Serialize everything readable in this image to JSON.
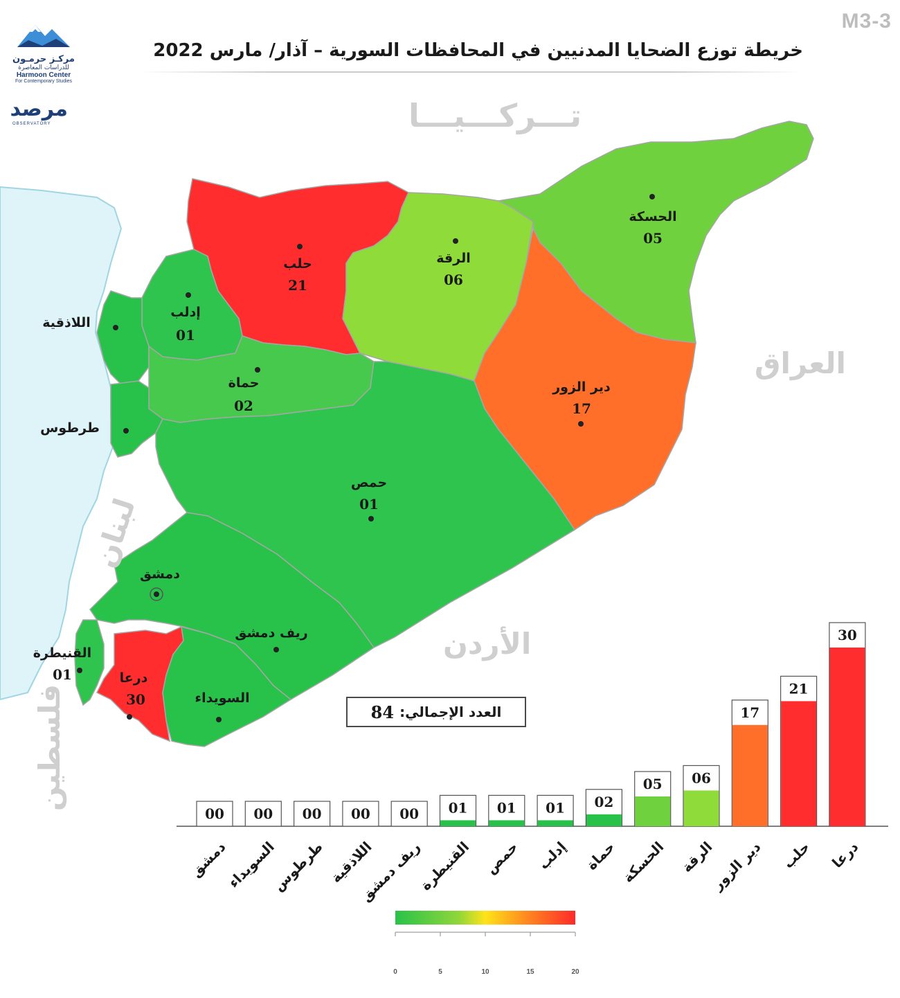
{
  "header": {
    "code": "M3-3",
    "title": "خريطة توزع الضحايا المدنيين في المحافظات السورية – آذار/ مارس 2022"
  },
  "logos": {
    "harmoon_ar": "مركـز حرمـون",
    "harmoon_ar_sub": "للدراسات المعاصرة",
    "harmoon_en": "Harmoon Center",
    "harmoon_en_sub": "For Contemporary Studies",
    "observatory_ar": "مرصد",
    "observatory_en": "OBSERVATORY"
  },
  "neighbors": {
    "turkey": "تـــركـــيـــا",
    "iraq": "العراق",
    "jordan": "الأردن",
    "lebanon": "لبنان",
    "palestine": "فلسطين"
  },
  "governorates": [
    {
      "id": "aleppo",
      "name": "حلب",
      "value": "21",
      "color": "#ff2d2d"
    },
    {
      "id": "raqqa",
      "name": "الرقة",
      "value": "06",
      "color": "#8fdb3a"
    },
    {
      "id": "hasakah",
      "name": "الحسكة",
      "value": "05",
      "color": "#6fd13e"
    },
    {
      "id": "deir",
      "name": "دير الزور",
      "value": "17",
      "color": "#ff6f2a"
    },
    {
      "id": "idlib",
      "name": "إدلب",
      "value": "01",
      "color": "#2ec44e"
    },
    {
      "id": "latakia",
      "name": "اللاذقية",
      "value": "",
      "color": "#28c24a"
    },
    {
      "id": "hama",
      "name": "حماة",
      "value": "02",
      "color": "#46c94c"
    },
    {
      "id": "tartus",
      "name": "طرطوس",
      "value": "",
      "color": "#28c24a"
    },
    {
      "id": "homs",
      "name": "حمص",
      "value": "01",
      "color": "#2ec44e"
    },
    {
      "id": "damascus",
      "name": "دمشق",
      "value": "",
      "color": "#28c24a"
    },
    {
      "id": "rif",
      "name": "ريف دمشق",
      "value": "",
      "color": "#28c24a"
    },
    {
      "id": "quneitra",
      "name": "القنيطرة",
      "value": "01",
      "color": "#2ec44e"
    },
    {
      "id": "daraa",
      "name": "درعا",
      "value": "30",
      "color": "#ff2d2d"
    },
    {
      "id": "suwayda",
      "name": "السويداء",
      "value": "",
      "color": "#28c24a"
    }
  ],
  "total": {
    "label": "العدد الإجمالي:",
    "value": "84"
  },
  "chart_data": {
    "type": "bar",
    "categories": [
      "دمشق",
      "السويداء",
      "طرطوس",
      "اللاذقية",
      "ريف دمشق",
      "القنيطرة",
      "حمص",
      "إدلب",
      "حماة",
      "الحسكة",
      "الرقة",
      "دير الزور",
      "حلب",
      "درعا"
    ],
    "values": [
      0,
      0,
      0,
      0,
      0,
      1,
      1,
      1,
      2,
      5,
      6,
      17,
      21,
      30
    ],
    "value_labels": [
      "00",
      "00",
      "00",
      "00",
      "00",
      "01",
      "01",
      "01",
      "02",
      "05",
      "06",
      "17",
      "21",
      "30"
    ],
    "bar_colors": [
      "#28c24a",
      "#28c24a",
      "#28c24a",
      "#28c24a",
      "#28c24a",
      "#28c24a",
      "#28c24a",
      "#28c24a",
      "#28c24a",
      "#6fd13e",
      "#8fdb3a",
      "#ff6f2a",
      "#ff2d2d",
      "#ff2d2d"
    ],
    "ylim": [
      0,
      30
    ],
    "title": "",
    "xlabel": "",
    "ylabel": ""
  },
  "color_scale": {
    "ticks": [
      "0",
      "5",
      "10",
      "15",
      "20"
    ],
    "colors": [
      "#28c24a",
      "#8fd63a",
      "#ffe31a",
      "#ff8c1f",
      "#ff2a2a"
    ]
  }
}
